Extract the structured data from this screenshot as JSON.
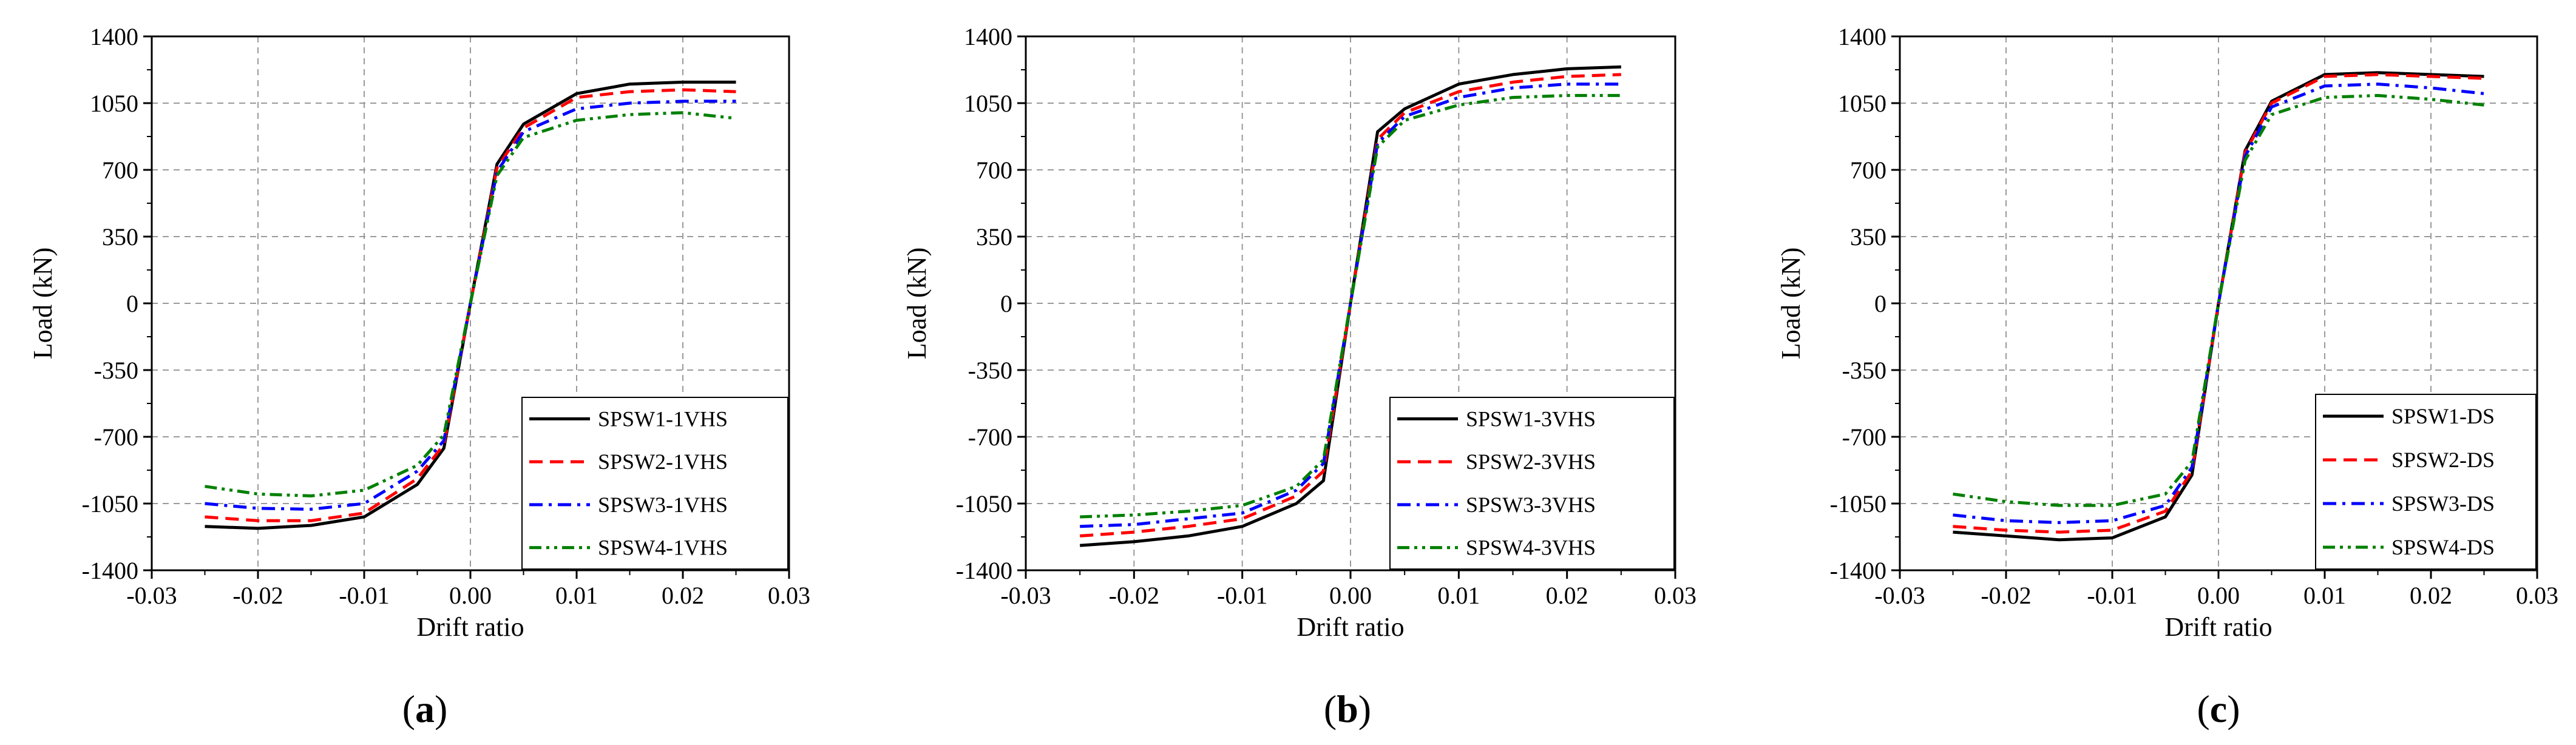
{
  "chart_data": [
    {
      "type": "line",
      "caption": [
        "(",
        "a",
        ")"
      ],
      "title": "",
      "xlabel": "Drift ratio",
      "ylabel": "Load (kN)",
      "xlim": [
        -0.03,
        0.03
      ],
      "ylim": [
        -1400,
        1400
      ],
      "xticks": [
        -0.03,
        -0.02,
        -0.01,
        0.0,
        0.01,
        0.02,
        0.03
      ],
      "xticklabels": [
        "-0.03",
        "-0.02",
        "-0.01",
        "0.00",
        "0.01",
        "0.02",
        "0.03"
      ],
      "yticks": [
        -1400,
        -1050,
        -700,
        -350,
        0,
        350,
        700,
        1050,
        1400
      ],
      "yticklabels": [
        "-1400",
        "-1050",
        "-700",
        "-350",
        "0",
        "350",
        "700",
        "1050",
        "1400"
      ],
      "grid": true,
      "legend_position": "lower-right",
      "series": [
        {
          "name": "SPSW1-1VHS",
          "color": "#000000",
          "dash": "solid",
          "x": [
            -0.025,
            -0.02,
            -0.015,
            -0.01,
            -0.005,
            -0.0025,
            0,
            0.0025,
            0.005,
            0.01,
            0.015,
            0.02,
            0.025
          ],
          "y": [
            -1170,
            -1180,
            -1165,
            -1120,
            -950,
            -760,
            0,
            730,
            940,
            1100,
            1150,
            1160,
            1160
          ]
        },
        {
          "name": "SPSW2-1VHS",
          "color": "#ff0000",
          "dash": "dashed",
          "x": [
            -0.025,
            -0.02,
            -0.015,
            -0.01,
            -0.005,
            -0.0025,
            0,
            0.0025,
            0.005,
            0.01,
            0.015,
            0.02,
            0.025
          ],
          "y": [
            -1120,
            -1140,
            -1140,
            -1100,
            -920,
            -740,
            0,
            710,
            920,
            1080,
            1110,
            1120,
            1110
          ]
        },
        {
          "name": "SPSW3-1VHS",
          "color": "#0000ff",
          "dash": "dashdot",
          "x": [
            -0.025,
            -0.02,
            -0.015,
            -0.01,
            -0.005,
            -0.0025,
            0,
            0.0025,
            0.005,
            0.01,
            0.015,
            0.02,
            0.025
          ],
          "y": [
            -1050,
            -1075,
            -1080,
            -1050,
            -880,
            -720,
            0,
            690,
            900,
            1020,
            1050,
            1060,
            1060
          ]
        },
        {
          "name": "SPSW4-1VHS",
          "color": "#008000",
          "dash": "dashdotdot",
          "x": [
            -0.025,
            -0.02,
            -0.015,
            -0.01,
            -0.005,
            -0.0025,
            0,
            0.0025,
            0.005,
            0.01,
            0.015,
            0.02,
            0.025
          ],
          "y": [
            -960,
            -1000,
            -1010,
            -980,
            -850,
            -690,
            0,
            670,
            870,
            960,
            990,
            1000,
            970
          ]
        }
      ]
    },
    {
      "type": "line",
      "caption": [
        "(",
        "b",
        ")"
      ],
      "title": "",
      "xlabel": "Drift ratio",
      "ylabel": "Load (kN)",
      "xlim": [
        -0.03,
        0.03
      ],
      "ylim": [
        -1400,
        1400
      ],
      "xticks": [
        -0.03,
        -0.02,
        -0.01,
        0.0,
        0.01,
        0.02,
        0.03
      ],
      "xticklabels": [
        "-0.03",
        "-0.02",
        "-0.01",
        "0.00",
        "0.01",
        "0.02",
        "0.03"
      ],
      "yticks": [
        -1400,
        -1050,
        -700,
        -350,
        0,
        350,
        700,
        1050,
        1400
      ],
      "yticklabels": [
        "-1400",
        "-1050",
        "-700",
        "-350",
        "0",
        "350",
        "700",
        "1050",
        "1400"
      ],
      "grid": true,
      "legend_position": "lower-right",
      "series": [
        {
          "name": "SPSW1-3VHS",
          "color": "#000000",
          "dash": "solid",
          "x": [
            -0.025,
            -0.02,
            -0.015,
            -0.01,
            -0.005,
            -0.0025,
            0,
            0.0025,
            0.005,
            0.01,
            0.015,
            0.02,
            0.025
          ],
          "y": [
            -1270,
            -1250,
            -1220,
            -1170,
            -1050,
            -930,
            0,
            900,
            1020,
            1150,
            1200,
            1230,
            1240
          ]
        },
        {
          "name": "SPSW2-3VHS",
          "color": "#ff0000",
          "dash": "dashed",
          "x": [
            -0.025,
            -0.02,
            -0.015,
            -0.01,
            -0.005,
            -0.0025,
            0,
            0.0025,
            0.005,
            0.01,
            0.015,
            0.02,
            0.025
          ],
          "y": [
            -1220,
            -1200,
            -1170,
            -1130,
            -1010,
            -880,
            0,
            860,
            1000,
            1110,
            1160,
            1190,
            1200
          ]
        },
        {
          "name": "SPSW3-3VHS",
          "color": "#0000ff",
          "dash": "dashdot",
          "x": [
            -0.025,
            -0.02,
            -0.015,
            -0.01,
            -0.005,
            -0.0025,
            0,
            0.0025,
            0.005,
            0.01,
            0.015,
            0.02,
            0.025
          ],
          "y": [
            -1170,
            -1160,
            -1130,
            -1100,
            -980,
            -840,
            0,
            840,
            980,
            1080,
            1130,
            1150,
            1150
          ]
        },
        {
          "name": "SPSW4-3VHS",
          "color": "#008000",
          "dash": "dashdotdot",
          "x": [
            -0.025,
            -0.02,
            -0.015,
            -0.01,
            -0.005,
            -0.0025,
            0,
            0.0025,
            0.005,
            0.01,
            0.015,
            0.02,
            0.025
          ],
          "y": [
            -1120,
            -1110,
            -1090,
            -1060,
            -960,
            -820,
            0,
            820,
            960,
            1040,
            1080,
            1090,
            1090
          ]
        }
      ]
    },
    {
      "type": "line",
      "caption": [
        "(",
        "c",
        ")"
      ],
      "title": "",
      "xlabel": "Drift ratio",
      "ylabel": "Load (kN)",
      "xlim": [
        -0.03,
        0.03
      ],
      "ylim": [
        -1400,
        1400
      ],
      "xticks": [
        -0.03,
        -0.02,
        -0.01,
        0.0,
        0.01,
        0.02,
        0.03
      ],
      "xticklabels": [
        "-0.03",
        "-0.02",
        "-0.01",
        "0.00",
        "0.01",
        "0.02",
        "0.03"
      ],
      "yticks": [
        -1400,
        -1050,
        -700,
        -350,
        0,
        350,
        700,
        1050,
        1400
      ],
      "yticklabels": [
        "-1400",
        "-1050",
        "-700",
        "-350",
        "0",
        "350",
        "700",
        "1050",
        "1400"
      ],
      "grid": true,
      "legend_position": "lower-right",
      "series": [
        {
          "name": "SPSW1-DS",
          "color": "#000000",
          "dash": "solid",
          "x": [
            -0.025,
            -0.02,
            -0.015,
            -0.01,
            -0.005,
            -0.0025,
            0,
            0.0025,
            0.005,
            0.01,
            0.015,
            0.02,
            0.025
          ],
          "y": [
            -1200,
            -1220,
            -1240,
            -1230,
            -1120,
            -900,
            0,
            800,
            1060,
            1200,
            1210,
            1200,
            1190
          ]
        },
        {
          "name": "SPSW2-DS",
          "color": "#ff0000",
          "dash": "dashed",
          "x": [
            -0.025,
            -0.02,
            -0.015,
            -0.01,
            -0.005,
            -0.0025,
            0,
            0.0025,
            0.005,
            0.01,
            0.015,
            0.02,
            0.025
          ],
          "y": [
            -1170,
            -1190,
            -1200,
            -1190,
            -1090,
            -880,
            0,
            790,
            1050,
            1190,
            1200,
            1190,
            1180
          ]
        },
        {
          "name": "SPSW3-DS",
          "color": "#0000ff",
          "dash": "dashdot",
          "x": [
            -0.025,
            -0.02,
            -0.015,
            -0.01,
            -0.005,
            -0.0025,
            0,
            0.0025,
            0.005,
            0.01,
            0.015,
            0.02,
            0.025
          ],
          "y": [
            -1110,
            -1140,
            -1150,
            -1140,
            -1060,
            -860,
            0,
            770,
            1030,
            1140,
            1150,
            1130,
            1100
          ]
        },
        {
          "name": "SPSW4-DS",
          "color": "#008000",
          "dash": "dashdotdot",
          "x": [
            -0.025,
            -0.02,
            -0.015,
            -0.01,
            -0.005,
            -0.0025,
            0,
            0.0025,
            0.005,
            0.01,
            0.015,
            0.02,
            0.025
          ],
          "y": [
            -1000,
            -1040,
            -1060,
            -1060,
            -1000,
            -830,
            0,
            750,
            990,
            1080,
            1090,
            1070,
            1040
          ]
        }
      ]
    }
  ]
}
